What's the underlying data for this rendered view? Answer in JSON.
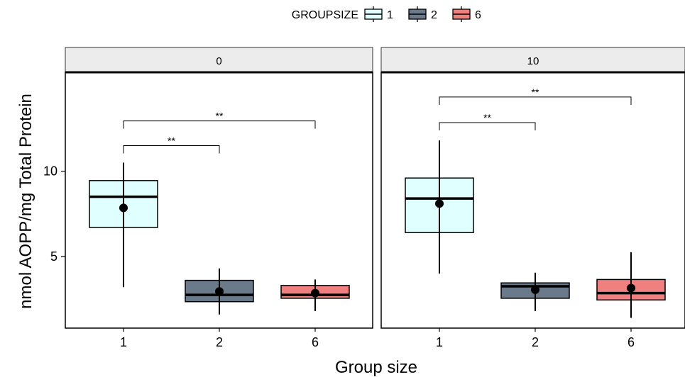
{
  "chart_data": {
    "type": "box",
    "legend": {
      "title": "GROUPSIZE",
      "position": "top",
      "entries": [
        {
          "label": "1",
          "color": "#e0ffff"
        },
        {
          "label": "2",
          "color": "#6b7a8b"
        },
        {
          "label": "6",
          "color": "#f08080"
        }
      ]
    },
    "xlabel": "Group size",
    "ylabel": "nmol AOPP/mg Total Protein",
    "ylim": [
      0.8,
      15.8
    ],
    "yticks": [
      {
        "value": 5,
        "label": "5"
      },
      {
        "value": 10,
        "label": "10"
      }
    ],
    "categories": [
      "1",
      "2",
      "6"
    ],
    "grid": false,
    "panels": [
      {
        "facet": "0",
        "boxes": [
          {
            "group": "1",
            "min": 3.2,
            "q1": 6.7,
            "median": 8.5,
            "q3": 9.45,
            "max": 10.5,
            "mean": 7.85
          },
          {
            "group": "2",
            "min": 1.6,
            "q1": 2.35,
            "median": 2.75,
            "q3": 3.6,
            "max": 4.3,
            "mean": 2.95
          },
          {
            "group": "6",
            "min": 1.8,
            "q1": 2.55,
            "median": 2.75,
            "q3": 3.3,
            "max": 3.65,
            "mean": 2.85
          }
        ],
        "significance": [
          {
            "from": "1",
            "to": "2",
            "label": "**",
            "y": 11.5
          },
          {
            "from": "1",
            "to": "6",
            "label": "**",
            "y": 12.95
          }
        ]
      },
      {
        "facet": "10",
        "boxes": [
          {
            "group": "1",
            "min": 4.0,
            "q1": 6.4,
            "median": 8.4,
            "q3": 9.6,
            "max": 11.8,
            "mean": 8.1
          },
          {
            "group": "2",
            "min": 1.8,
            "q1": 2.55,
            "median": 3.25,
            "q3": 3.45,
            "max": 4.05,
            "mean": 3.05
          },
          {
            "group": "6",
            "min": 1.4,
            "q1": 2.45,
            "median": 2.85,
            "q3": 3.65,
            "max": 5.25,
            "mean": 3.15
          }
        ],
        "significance": [
          {
            "from": "1",
            "to": "2",
            "label": "**",
            "y": 12.85
          },
          {
            "from": "1",
            "to": "6",
            "label": "**",
            "y": 14.35
          }
        ]
      }
    ]
  }
}
